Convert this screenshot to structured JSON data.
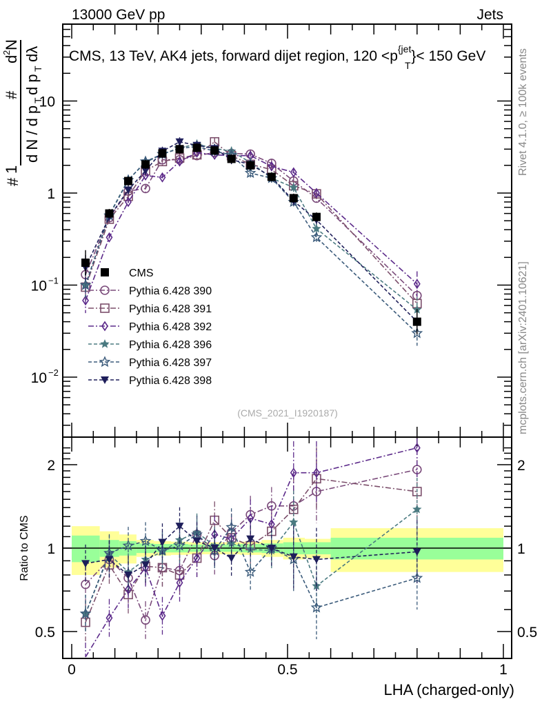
{
  "header": {
    "left": "13000 GeV pp",
    "right": "Jets"
  },
  "side_labels": {
    "rivet": "Rivet 4.1.0, ≥ 100k events",
    "mcplots": "mcplots.cern.ch [arXiv:2401.10621]"
  },
  "chart_data": {
    "type": "scatter",
    "title": "CMS, 13 TeV, AK4 jets, forward dijet region, 120 <p_T^{jet}< 150 GeV",
    "title_parts": {
      "pre": "CMS, 13 TeV, AK4 jets, forward dijet region, 120 <p",
      "sup": "{jet",
      "sub": "T",
      "post": "}< 150 GeV"
    },
    "analysis_id": "(CMS_2021_I1920187)",
    "xlabel": "LHA (charged-only)",
    "ylabel_main": "1/N dN/dpT d²N/dpT dλ",
    "ylabel_ratio": "Ratio to CMS",
    "xlim": [
      0,
      1
    ],
    "ylim_main": [
      0.0025,
      40
    ],
    "ylim_ratio": [
      0.43,
      2.35
    ],
    "yscale": "log",
    "x_ticks": [
      "0",
      "0.5",
      "1"
    ],
    "x_tick_values": [
      0,
      0.5,
      1
    ],
    "y_ticks_main": [
      {
        "value": 10,
        "label": "10"
      },
      {
        "value": 1,
        "label": "1"
      },
      {
        "value": 0.1,
        "label": "10",
        "exp": "−1"
      },
      {
        "value": 0.01,
        "label": "10",
        "exp": "−2"
      }
    ],
    "y_ticks_ratio": [
      {
        "value": 2,
        "label": "2"
      },
      {
        "value": 1,
        "label": "1"
      },
      {
        "value": 0.5,
        "label": "0.5"
      }
    ],
    "x": [
      0.032,
      0.087,
      0.131,
      0.171,
      0.21,
      0.25,
      0.29,
      0.331,
      0.37,
      0.414,
      0.463,
      0.514,
      0.567,
      0.8
    ],
    "bin_edges": [
      0,
      0.065,
      0.11,
      0.15,
      0.19,
      0.23,
      0.27,
      0.31,
      0.35,
      0.39,
      0.44,
      0.49,
      0.54,
      0.6,
      1.0
    ],
    "ref_band": {
      "inner_rel": [
        0.11,
        0.07,
        0.06,
        0.04,
        0.035,
        0.035,
        0.03,
        0.03,
        0.03,
        0.035,
        0.04,
        0.05,
        0.05,
        0.09
      ],
      "outer_rel": [
        0.2,
        0.15,
        0.12,
        0.07,
        0.06,
        0.055,
        0.05,
        0.05,
        0.05,
        0.055,
        0.07,
        0.09,
        0.08,
        0.18
      ],
      "inner_color": "#99ff99",
      "outer_color": "#ffff99"
    },
    "legend": {
      "position": "left-middle"
    },
    "series": [
      {
        "name": "CMS",
        "marker": "square-filled",
        "color": "#000000",
        "line": "none",
        "values": [
          0.175,
          0.6,
          1.35,
          2.05,
          2.7,
          3.0,
          3.1,
          2.9,
          2.35,
          2.0,
          1.5,
          0.88,
          0.55,
          0.04
        ],
        "ratio": [
          1,
          1,
          1,
          1,
          1,
          1,
          1,
          1,
          1,
          1,
          1,
          1,
          1,
          1
        ]
      },
      {
        "name": "Pythia 6.428 390",
        "marker": "circle-open",
        "color": "#7a4a7a",
        "line": "dashdot",
        "values": [
          0.13,
          0.54,
          1.05,
          1.12,
          2.3,
          2.3,
          2.55,
          2.75,
          2.7,
          2.65,
          2.1,
          1.35,
          0.88,
          0.077
        ],
        "ratio": [
          0.74,
          0.91,
          0.78,
          0.55,
          0.85,
          0.83,
          1.12,
          0.94,
          1.14,
          1.32,
          1.42,
          1.42,
          1.6,
          1.92
        ]
      },
      {
        "name": "Pythia 6.428 391",
        "marker": "square-open",
        "color": "#7b4e6a",
        "line": "dashdot",
        "values": [
          0.095,
          0.52,
          0.92,
          1.75,
          2.2,
          2.4,
          2.6,
          3.6,
          2.55,
          2.05,
          1.8,
          1.2,
          0.98,
          0.063
        ],
        "ratio": [
          0.54,
          0.87,
          0.68,
          0.86,
          0.85,
          0.8,
          0.92,
          1.26,
          1.09,
          1.02,
          1.15,
          1.38,
          1.78,
          1.6
        ]
      },
      {
        "name": "Pythia 6.428 392",
        "marker": "diamond-open",
        "color": "#5c2a8a",
        "line": "dashdot",
        "values": [
          0.068,
          0.33,
          0.8,
          1.55,
          1.48,
          2.2,
          2.75,
          2.6,
          2.55,
          2.55,
          1.95,
          1.68,
          1.0,
          0.103
        ],
        "ratio": [
          0.39,
          0.56,
          0.71,
          0.85,
          0.57,
          0.75,
          0.92,
          1.12,
          1.08,
          1.28,
          1.22,
          1.87,
          1.87,
          2.3
        ]
      },
      {
        "name": "Pythia 6.428 396",
        "marker": "star-filled",
        "color": "#4a7a80",
        "line": "dashed",
        "values": [
          0.1,
          0.58,
          1.4,
          2.15,
          2.65,
          3.1,
          3.4,
          3.05,
          2.85,
          2.15,
          1.45,
          1.15,
          0.41,
          0.054
        ],
        "ratio": [
          0.58,
          0.95,
          0.82,
          0.91,
          0.97,
          1.07,
          1.14,
          1.02,
          1.04,
          0.99,
          0.98,
          1.24,
          0.73,
          1.38
        ]
      },
      {
        "name": "Pythia 6.428 397",
        "marker": "star-open",
        "color": "#3a5a7a",
        "line": "dashed",
        "values": [
          0.1,
          0.57,
          1.38,
          2.2,
          2.65,
          3.05,
          3.2,
          2.85,
          2.6,
          1.65,
          1.45,
          0.8,
          0.33,
          0.03
        ],
        "ratio": [
          0.58,
          0.96,
          1.02,
          1.06,
          0.98,
          1.02,
          1.12,
          0.98,
          1.19,
          0.82,
          1.0,
          0.91,
          0.61,
          0.78
        ]
      },
      {
        "name": "Pythia 6.428 398",
        "marker": "triangle-down-filled",
        "color": "#1e1e5a",
        "line": "dashed",
        "values": [
          0.155,
          0.55,
          1.08,
          1.75,
          2.85,
          3.6,
          3.3,
          3.05,
          2.3,
          2.05,
          1.5,
          0.82,
          0.51,
          0.04
        ],
        "ratio": [
          0.88,
          0.91,
          0.8,
          0.87,
          1.05,
          1.2,
          1.06,
          1.0,
          0.92,
          1.08,
          1.0,
          0.93,
          0.91,
          0.97
        ]
      }
    ]
  }
}
